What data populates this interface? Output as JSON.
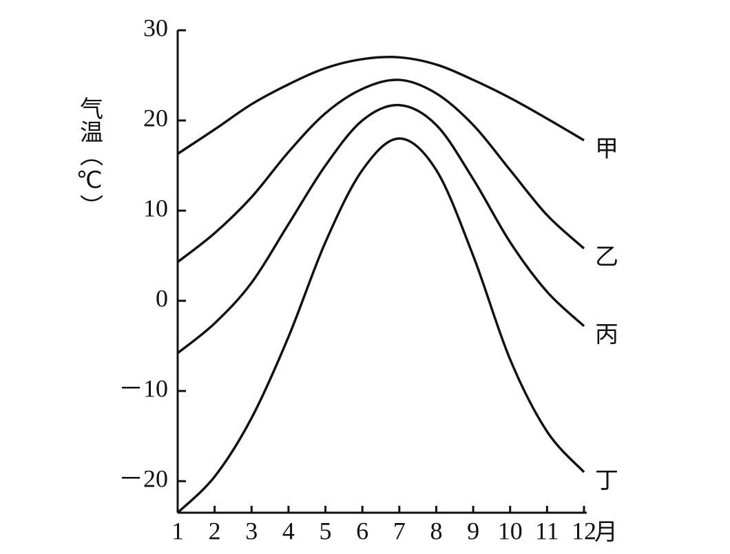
{
  "chart_data": {
    "type": "line",
    "y_label": "气温（℃）",
    "x_label": "月",
    "x": [
      1,
      2,
      3,
      4,
      5,
      6,
      7,
      8,
      9,
      10,
      11,
      12
    ],
    "xlim": [
      1,
      12
    ],
    "xticks": [
      1,
      2,
      3,
      4,
      5,
      6,
      7,
      8,
      9,
      10,
      11,
      12
    ],
    "ylim": [
      -23.5,
      30
    ],
    "yticks": [
      30,
      20,
      10,
      0,
      {
        "value": -10,
        "label": "－10"
      },
      {
        "value": -20,
        "label": "－20"
      }
    ],
    "series": [
      {
        "name": "甲",
        "color": "#111111",
        "values": [
          16.3,
          19,
          21.8,
          24,
          25.8,
          26.8,
          27,
          26.2,
          24.5,
          22.5,
          20.2,
          17.8
        ]
      },
      {
        "name": "乙",
        "color": "#111111",
        "values": [
          4.3,
          7.5,
          11.5,
          16.5,
          20.8,
          23.5,
          24.5,
          23,
          19.5,
          14.5,
          9.5,
          5.8
        ]
      },
      {
        "name": "丙",
        "color": "#111111",
        "values": [
          -5.8,
          -2.5,
          2,
          8.5,
          15,
          20,
          21.7,
          19.5,
          13.5,
          6.5,
          1,
          -2.8
        ]
      },
      {
        "name": "丁",
        "color": "#111111",
        "values": [
          -23.5,
          -19.5,
          -13,
          -4,
          6.5,
          14.5,
          18,
          14.5,
          5,
          -6.5,
          -14.5,
          -19
        ]
      }
    ]
  }
}
